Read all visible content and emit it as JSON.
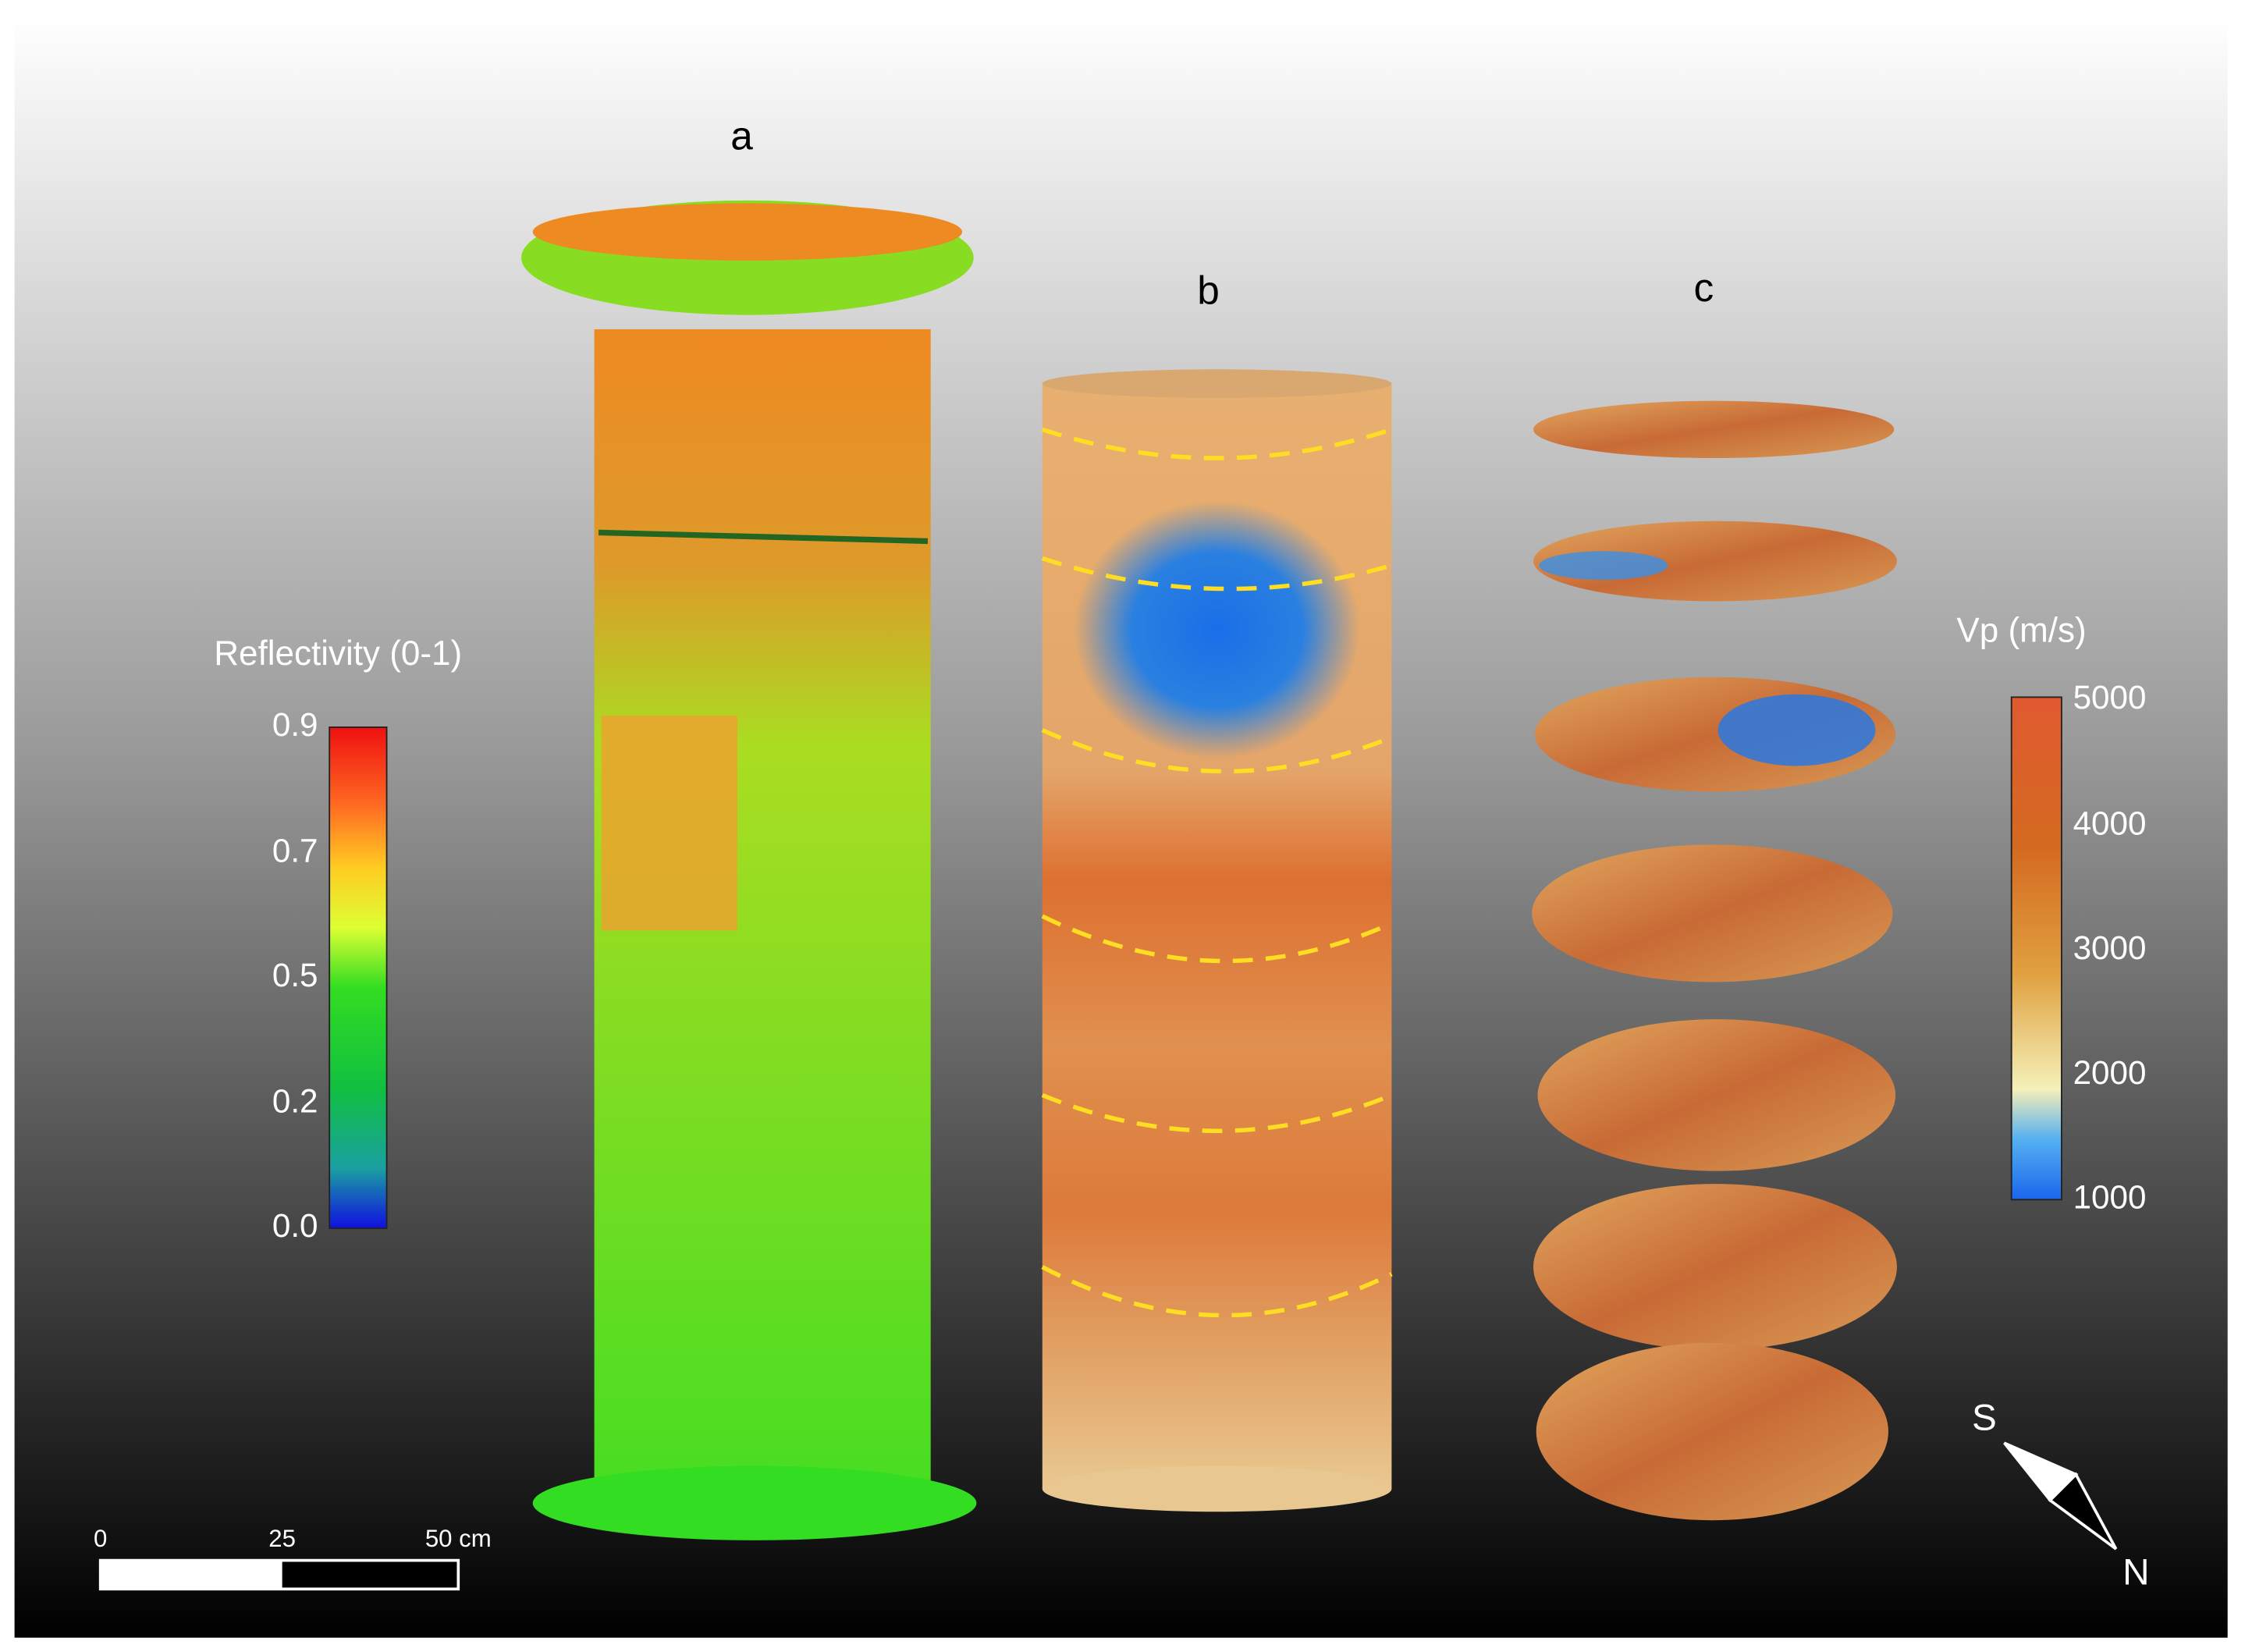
{
  "panels": {
    "a": "a",
    "b": "b",
    "c": "c"
  },
  "reflectivity_colorbar": {
    "title": "Reflectivity (0-1)",
    "ticks": [
      "0.9",
      "0.7",
      "0.5",
      "0.2",
      "0.0"
    ]
  },
  "velocity_colorbar": {
    "title": "Vp (m/s)",
    "ticks": [
      "5000",
      "4000",
      "3000",
      "2000",
      "1000"
    ]
  },
  "scale_bar": {
    "labels": [
      "0",
      "25",
      "50 cm"
    ]
  },
  "compass": {
    "south": "S",
    "north": "N"
  }
}
